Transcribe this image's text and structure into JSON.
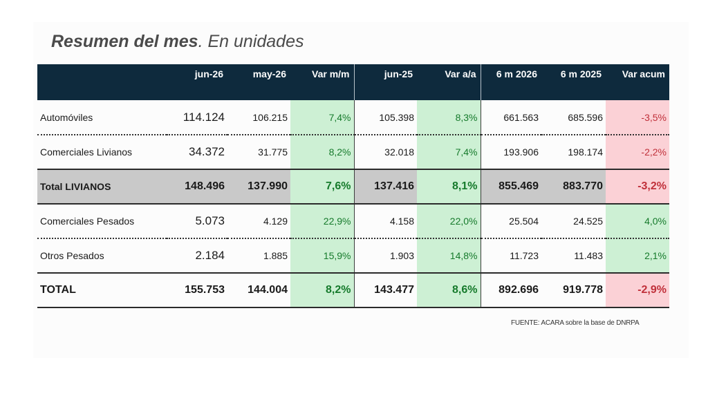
{
  "title": {
    "bold": "Resumen del mes",
    "rest": ". En unidades"
  },
  "colors": {
    "header_bg": "#0e2a3d",
    "positive_bg": "#cdf0d4",
    "positive_text": "#157a2b",
    "negative_bg": "#fbd1d6",
    "negative_text": "#c0303a",
    "subtotal_bg": "#c9c9c9"
  },
  "columns": [
    "",
    "jun-26",
    "may-26",
    "Var m/m",
    "jun-25",
    "Var a/a",
    "6 m 2026",
    "6 m 2025",
    "Var acum"
  ],
  "rows": [
    {
      "label": "Automóviles",
      "values": [
        "114.124",
        "106.215",
        "7,4%",
        "105.398",
        "8,3%",
        "661.563",
        "685.596",
        "-3,5%"
      ]
    },
    {
      "label": "Comerciales Livianos",
      "values": [
        "34.372",
        "31.775",
        "8,2%",
        "32.018",
        "7,4%",
        "193.906",
        "198.174",
        "-2,2%"
      ]
    },
    {
      "label": "Total LIVIANOS",
      "values": [
        "148.496",
        "137.990",
        "7,6%",
        "137.416",
        "8,1%",
        "855.469",
        "883.770",
        "-3,2%"
      ]
    },
    {
      "label": "Comerciales Pesados",
      "values": [
        "5.073",
        "4.129",
        "22,9%",
        "4.158",
        "22,0%",
        "25.504",
        "24.525",
        "4,0%"
      ]
    },
    {
      "label": "Otros Pesados",
      "values": [
        "2.184",
        "1.885",
        "15,9%",
        "1.903",
        "14,8%",
        "11.723",
        "11.483",
        "2,1%"
      ]
    },
    {
      "label": "TOTAL",
      "values": [
        "155.753",
        "144.004",
        "8,2%",
        "143.477",
        "8,6%",
        "892.696",
        "919.778",
        "-2,9%"
      ]
    }
  ],
  "source": "FUENTE: ACARA sobre la base de DNRPA"
}
